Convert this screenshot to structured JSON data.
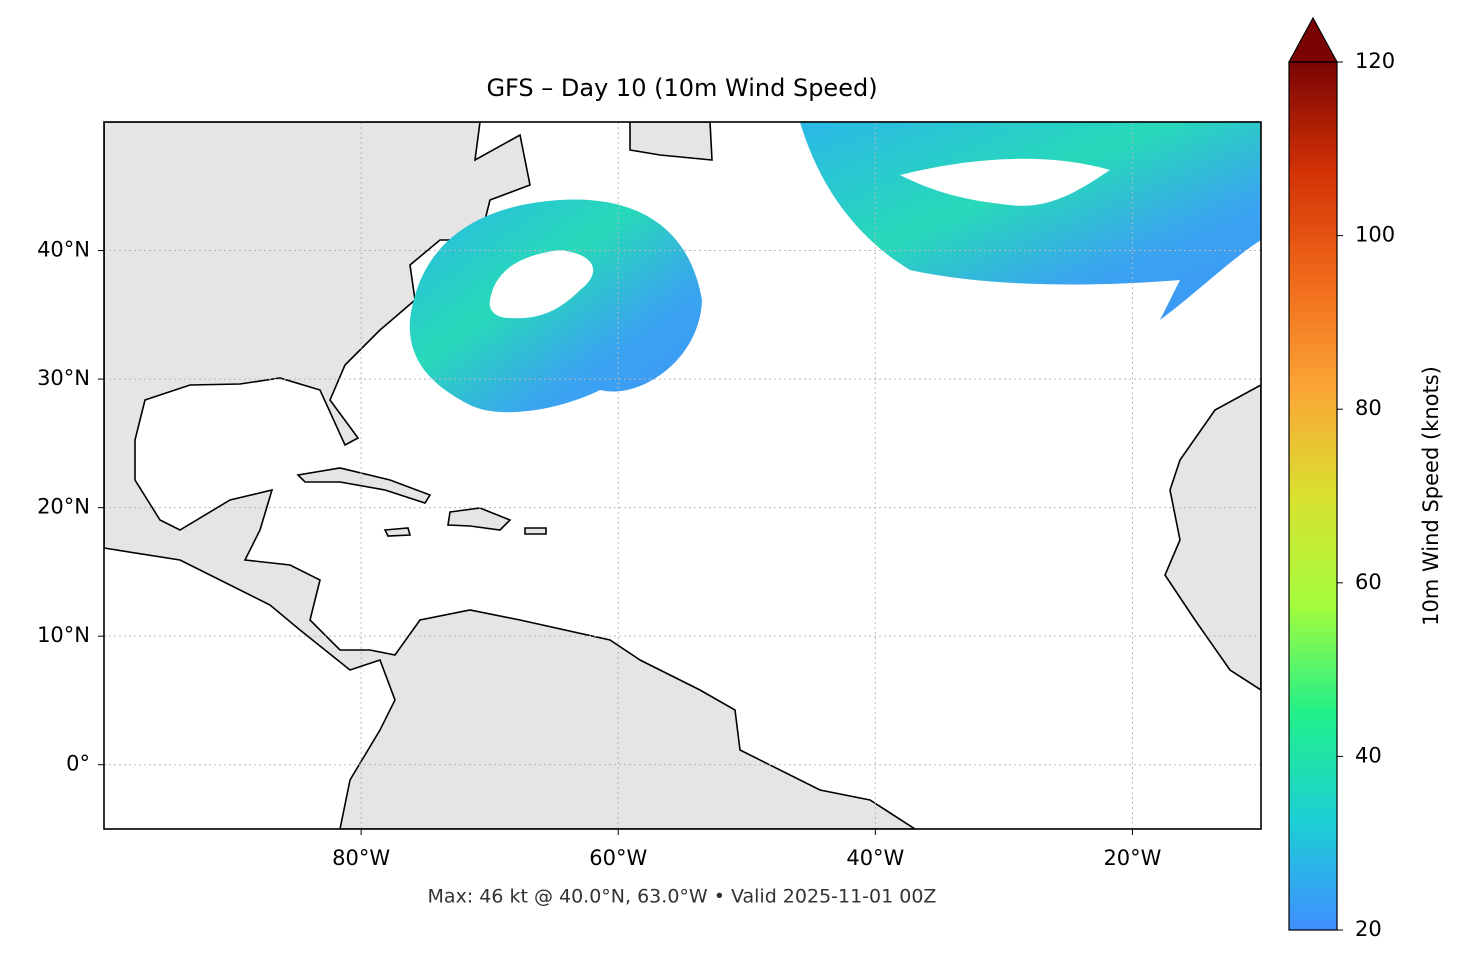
{
  "chart_data": {
    "type": "map",
    "title": "GFS – Day 10 (10m Wind Speed)",
    "caption": "Max: 46 kt @ 40.0°N, 63.0°W • Valid 2025-11-01 00Z",
    "xlim": [
      -100,
      -10
    ],
    "ylim": [
      -5,
      50
    ],
    "xticks": [
      {
        "value": -80,
        "label": "80°W"
      },
      {
        "value": -60,
        "label": "60°W"
      },
      {
        "value": -40,
        "label": "40°W"
      },
      {
        "value": -20,
        "label": "20°W"
      }
    ],
    "yticks": [
      {
        "value": 0,
        "label": "0°"
      },
      {
        "value": 10,
        "label": "10°N"
      },
      {
        "value": 20,
        "label": "20°N"
      },
      {
        "value": 30,
        "label": "30°N"
      },
      {
        "value": 40,
        "label": "40°N"
      }
    ],
    "grid": true,
    "colormap": "turbo",
    "colorbar": {
      "label": "10m Wind Speed (knots)",
      "lim": [
        20,
        120
      ],
      "ticks": [
        20,
        40,
        60,
        80,
        100,
        120
      ]
    }
  }
}
